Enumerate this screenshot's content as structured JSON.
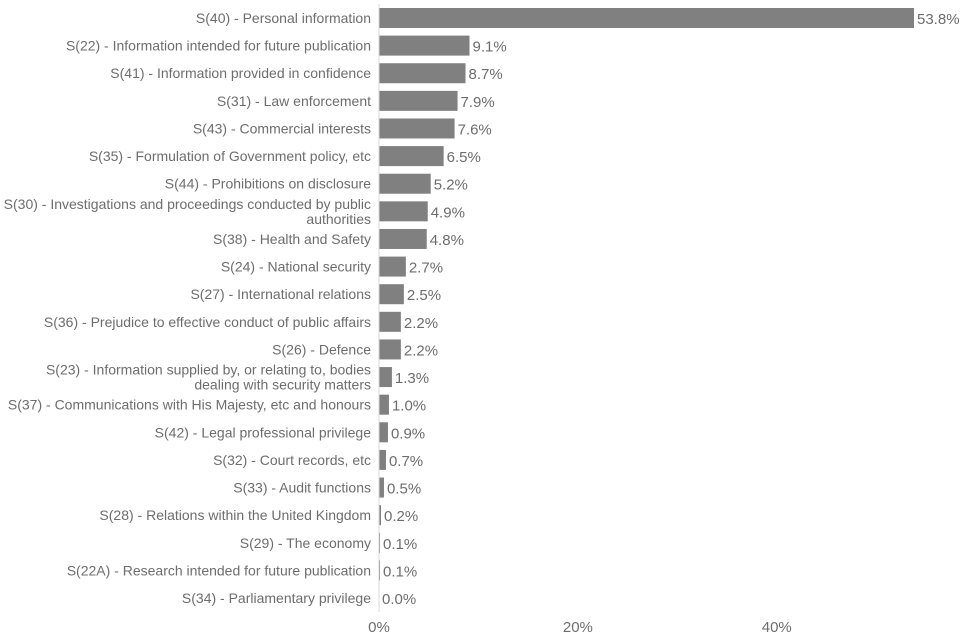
{
  "chart_data": {
    "type": "bar",
    "orientation": "horizontal",
    "title": "",
    "xlabel": "",
    "ylabel": "",
    "xlim": [
      0,
      0.538
    ],
    "grid": false,
    "legend": "none",
    "bar_color": "#808080",
    "text_color": "#6d6d6d",
    "axis_color": "#d9d9d9",
    "categories": [
      "S(40) - Personal information",
      "S(22) - Information intended for future publication",
      "S(41) - Information provided in confidence",
      "S(31) - Law enforcement",
      "S(43) - Commercial interests",
      "S(35) - Formulation of Government policy, etc",
      "S(44) - Prohibitions on disclosure",
      "S(30) - Investigations and proceedings conducted by public authorities",
      "S(38) - Health and Safety",
      "S(24) - National security",
      "S(27) - International relations",
      "S(36) - Prejudice to effective conduct of public affairs",
      "S(26) - Defence",
      "S(23) - Information supplied by, or relating to, bodies dealing with security matters",
      "S(37) - Communications with His Majesty, etc and honours",
      "S(42) - Legal professional privilege",
      "S(32) - Court records, etc",
      "S(33) - Audit functions",
      "S(28) - Relations within the United Kingdom",
      "S(29) - The economy",
      "S(22A) - Research intended for future publication",
      "S(34) - Parliamentary privilege"
    ],
    "category_lines": [
      [
        "S(40) - Personal information"
      ],
      [
        "S(22) - Information intended for future publication"
      ],
      [
        "S(41) - Information provided in confidence"
      ],
      [
        "S(31) - Law enforcement"
      ],
      [
        "S(43) - Commercial interests"
      ],
      [
        "S(35) - Formulation of Government policy, etc"
      ],
      [
        "S(44) - Prohibitions on disclosure"
      ],
      [
        "S(30) - Investigations and proceedings conducted by public",
        "authorities"
      ],
      [
        "S(38) - Health and Safety"
      ],
      [
        "S(24) - National security"
      ],
      [
        "S(27) - International relations"
      ],
      [
        "S(36) - Prejudice to effective conduct of public affairs"
      ],
      [
        "S(26) - Defence"
      ],
      [
        "S(23) - Information supplied by, or relating to, bodies",
        "dealing with security matters"
      ],
      [
        "S(37) - Communications with His Majesty, etc and honours"
      ],
      [
        "S(42) - Legal professional privilege"
      ],
      [
        "S(32) - Court records, etc"
      ],
      [
        "S(33) - Audit functions"
      ],
      [
        "S(28) - Relations within the United Kingdom"
      ],
      [
        "S(29) - The economy"
      ],
      [
        "S(22A) - Research intended for future publication"
      ],
      [
        "S(34) - Parliamentary privilege"
      ]
    ],
    "values": [
      0.538,
      0.091,
      0.087,
      0.079,
      0.076,
      0.065,
      0.052,
      0.049,
      0.048,
      0.027,
      0.025,
      0.022,
      0.022,
      0.013,
      0.01,
      0.009,
      0.007,
      0.005,
      0.002,
      0.001,
      0.001,
      0.0
    ],
    "value_labels": [
      "53.8%",
      "9.1%",
      "8.7%",
      "7.9%",
      "7.6%",
      "6.5%",
      "5.2%",
      "4.9%",
      "4.8%",
      "2.7%",
      "2.5%",
      "2.2%",
      "2.2%",
      "1.3%",
      "1.0%",
      "0.9%",
      "0.7%",
      "0.5%",
      "0.2%",
      "0.1%",
      "0.1%",
      "0.0%"
    ],
    "x_ticks": [
      0,
      0.2,
      0.4
    ],
    "x_tick_labels": [
      "0%",
      "20%",
      "40%"
    ]
  }
}
